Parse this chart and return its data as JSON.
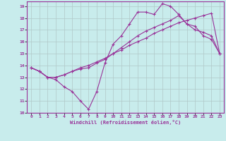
{
  "title": "",
  "xlabel": "Windchill (Refroidissement éolien,°C)",
  "bg_color": "#c8ecec",
  "grid_color": "#b0c8c8",
  "line_color": "#993399",
  "xlim": [
    -0.5,
    23.5
  ],
  "ylim": [
    10,
    19.4
  ],
  "xticks": [
    0,
    1,
    2,
    3,
    4,
    5,
    6,
    7,
    8,
    9,
    10,
    11,
    12,
    13,
    14,
    15,
    16,
    17,
    18,
    19,
    20,
    21,
    22,
    23
  ],
  "yticks": [
    10,
    11,
    12,
    13,
    14,
    15,
    16,
    17,
    18,
    19
  ],
  "line1_x": [
    0,
    1,
    2,
    3,
    4,
    5,
    6,
    7,
    8,
    9,
    10,
    11,
    12,
    13,
    14,
    15,
    16,
    17,
    18,
    19,
    20,
    21,
    22,
    23
  ],
  "line1_y": [
    13.8,
    13.5,
    13.0,
    12.8,
    12.2,
    11.8,
    11.0,
    10.3,
    11.8,
    14.2,
    15.8,
    16.5,
    17.5,
    18.5,
    18.5,
    18.3,
    19.2,
    19.0,
    18.3,
    17.5,
    17.3,
    16.5,
    16.2,
    15.0
  ],
  "line2_x": [
    0,
    1,
    2,
    3,
    4,
    5,
    6,
    7,
    8,
    9,
    10,
    11,
    12,
    13,
    14,
    15,
    16,
    17,
    18,
    19,
    20,
    21,
    22,
    23
  ],
  "line2_y": [
    13.8,
    13.5,
    13.0,
    13.0,
    13.2,
    13.5,
    13.7,
    13.8,
    14.2,
    14.5,
    15.0,
    15.5,
    16.0,
    16.5,
    16.9,
    17.2,
    17.5,
    17.8,
    18.2,
    17.5,
    17.0,
    16.8,
    16.5,
    15.0
  ],
  "line3_x": [
    0,
    1,
    2,
    3,
    4,
    5,
    6,
    7,
    8,
    9,
    10,
    11,
    12,
    13,
    14,
    15,
    16,
    17,
    18,
    19,
    20,
    21,
    22,
    23
  ],
  "line3_y": [
    13.8,
    13.5,
    13.0,
    13.0,
    13.2,
    13.5,
    13.8,
    14.0,
    14.3,
    14.6,
    15.0,
    15.3,
    15.7,
    16.0,
    16.3,
    16.7,
    17.0,
    17.3,
    17.6,
    17.8,
    18.0,
    18.2,
    18.4,
    15.0
  ]
}
